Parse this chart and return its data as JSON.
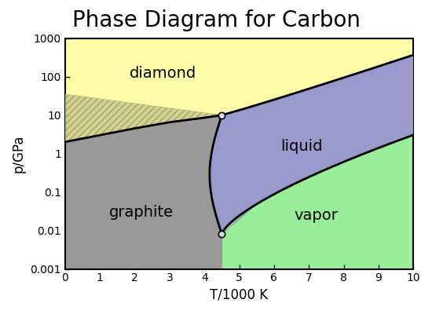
{
  "title": "Phase Diagram for Carbon",
  "xlabel": "T/1000 K",
  "ylabel": "p/GPa",
  "xlim": [
    0,
    10
  ],
  "background_color": "#ffffff",
  "colors": {
    "diamond": "#ffffaa",
    "liquid": "#9999cc",
    "graphite": "#999999",
    "vapor": "#99ee99",
    "hatch_diamond": "#cccc88",
    "hatch_liquid": "#aaaacc"
  },
  "triple_point_upper": [
    4.5,
    10.0
  ],
  "triple_point_lower": [
    4.5,
    0.008
  ],
  "tick_labels_x": [
    0,
    1,
    2,
    3,
    4,
    5,
    6,
    7,
    8,
    9,
    10
  ],
  "tick_labels_y": [
    "0.001",
    "0.01",
    "0.1",
    "1",
    "10",
    "100",
    "1000"
  ],
  "tick_values_y": [
    0.001,
    0.01,
    0.1,
    1.0,
    10.0,
    100.0,
    1000.0
  ],
  "label_diamond": "diamond",
  "label_liquid": "liquid",
  "label_graphite": "graphite",
  "label_vapor": "vapor",
  "title_fontsize": 20,
  "axis_label_fontsize": 12,
  "tick_label_fontsize": 10,
  "phase_label_fontsize": 14
}
